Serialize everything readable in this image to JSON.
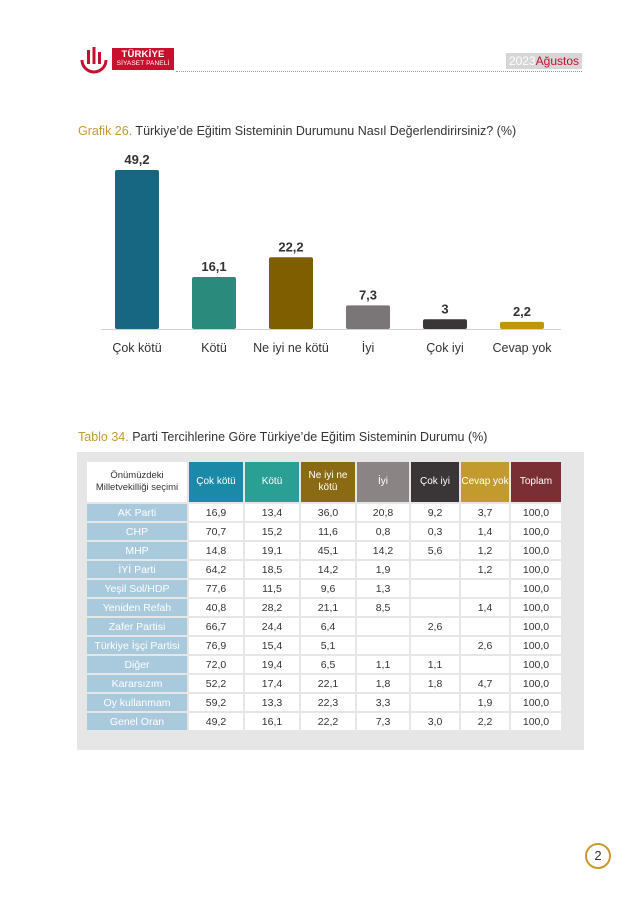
{
  "header": {
    "brand_line1": "TÜRKİYE",
    "brand_line2": "SİYASET PANELİ",
    "year": "2023",
    "month": "Ağustos"
  },
  "chart_caption": {
    "number": "Grafik 26.",
    "text": " Türkiye’de Eğitim Sisteminin Durumunu Nasıl Değerlendirirsiniz? (%)"
  },
  "chart_data": {
    "type": "bar",
    "categories": [
      "Çok kötü",
      "Kötü",
      "Ne iyi ne kötü",
      "İyi",
      "Çok iyi",
      "Cevap yok"
    ],
    "values": [
      49.2,
      16.1,
      22.2,
      7.3,
      3,
      2.2
    ],
    "value_labels": [
      "49,2",
      "16,1",
      "22,2",
      "7,3",
      "3",
      "2,2"
    ],
    "colors": [
      "#176782",
      "#2a8a7c",
      "#7f5e00",
      "#7a7576",
      "#3a3638",
      "#bf950c"
    ],
    "ylim": [
      0,
      49.2
    ],
    "grid": false,
    "legend": "none"
  },
  "table_caption": {
    "number": "Tablo 34.",
    "text": " Parti Tercihlerine Göre Türkiye’de Eğitim Sisteminin Durumu (%)"
  },
  "table": {
    "corner_header": "Önümüzdeki Milletvekilliği seçimi",
    "columns": [
      {
        "label": "Çok kötü",
        "color": "#1a8aa8"
      },
      {
        "label": "Kötü",
        "color": "#2aa095"
      },
      {
        "label": "Ne iyi ne kötü",
        "color": "#8a6a12"
      },
      {
        "label": "İyi",
        "color": "#8a8485"
      },
      {
        "label": "Çok iyi",
        "color": "#3a3638"
      },
      {
        "label": "Cevap yok",
        "color": "#c39a2e"
      },
      {
        "label": "Toplam",
        "color": "#7a2f35"
      }
    ],
    "rows": [
      {
        "label": "AK Parti",
        "values": [
          "16,9",
          "13,4",
          "36,0",
          "20,8",
          "9,2",
          "3,7",
          "100,0"
        ]
      },
      {
        "label": "CHP",
        "values": [
          "70,7",
          "15,2",
          "11,6",
          "0,8",
          "0,3",
          "1,4",
          "100,0"
        ]
      },
      {
        "label": "MHP",
        "values": [
          "14,8",
          "19,1",
          "45,1",
          "14,2",
          "5,6",
          "1,2",
          "100,0"
        ]
      },
      {
        "label": "İYİ Parti",
        "values": [
          "64,2",
          "18,5",
          "14,2",
          "1,9",
          "",
          "1,2",
          "100,0"
        ]
      },
      {
        "label": "Yeşil Sol/HDP",
        "values": [
          "77,6",
          "11,5",
          "9,6",
          "1,3",
          "",
          "",
          "100,0"
        ]
      },
      {
        "label": "Yeniden Refah",
        "values": [
          "40,8",
          "28,2",
          "21,1",
          "8,5",
          "",
          "1,4",
          "100,0"
        ]
      },
      {
        "label": "Zafer Partisi",
        "values": [
          "66,7",
          "24,4",
          "6,4",
          "",
          "2,6",
          "",
          "100,0"
        ]
      },
      {
        "label": "Türkiye İşçi Partisi",
        "values": [
          "76,9",
          "15,4",
          "5,1",
          "",
          "",
          "2,6",
          "100,0"
        ]
      },
      {
        "label": "Diğer",
        "values": [
          "72,0",
          "19,4",
          "6,5",
          "1,1",
          "1,1",
          "",
          "100,0"
        ]
      },
      {
        "label": "Kararsızım",
        "values": [
          "52,2",
          "17,4",
          "22,1",
          "1,8",
          "1,8",
          "4,7",
          "100,0"
        ]
      },
      {
        "label": "Oy kullanmam",
        "values": [
          "59,2",
          "13,3",
          "22,3",
          "3,3",
          "",
          "1,9",
          "100,0"
        ]
      },
      {
        "label": "Genel Oran",
        "values": [
          "49,2",
          "16,1",
          "22,2",
          "7,3",
          "3,0",
          "2,2",
          "100,0"
        ]
      }
    ]
  },
  "page_number": "2"
}
